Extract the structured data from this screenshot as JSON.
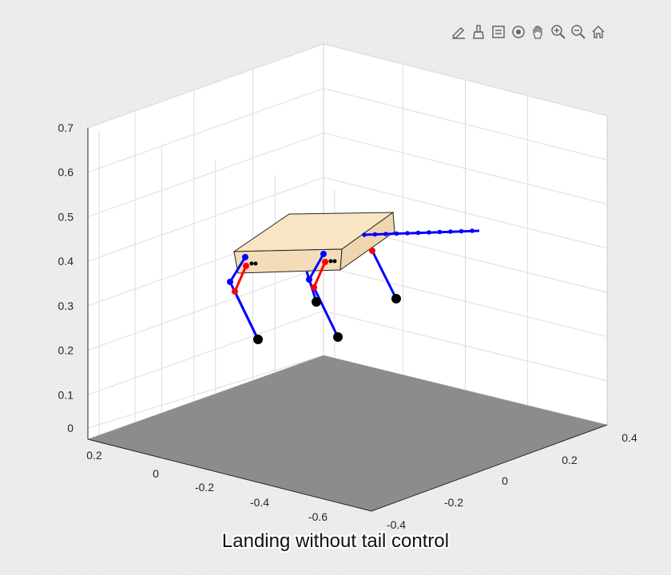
{
  "caption": "Landing without tail control",
  "toolbar": {
    "items": [
      {
        "name": "edit-plot-icon"
      },
      {
        "name": "brush-icon"
      },
      {
        "name": "data-tips-icon"
      },
      {
        "name": "rotate-3d-icon"
      },
      {
        "name": "pan-hand-icon"
      },
      {
        "name": "zoom-in-icon"
      },
      {
        "name": "zoom-out-icon"
      },
      {
        "name": "home-icon"
      }
    ]
  },
  "colors": {
    "axes_bg": "#ffffff",
    "grid": "#dcdce6",
    "ground": "#8c8c8c",
    "body_fill": "#f8e5c4",
    "leg_blue": "#0000ff",
    "leg_red": "#ff0000",
    "foot": "#000000"
  },
  "chart_data": {
    "type": "3d-line",
    "title": "",
    "xlabel": "",
    "ylabel": "",
    "zlabel": "",
    "x_ticks": [
      "0.2",
      "0",
      "-0.2",
      "-0.4",
      "-0.6"
    ],
    "y_ticks": [
      "-0.4",
      "-0.2",
      "0",
      "0.2",
      "0.4"
    ],
    "z_ticks": [
      "0",
      "0.1",
      "0.2",
      "0.3",
      "0.4",
      "0.5",
      "0.6",
      "0.7"
    ],
    "zlim": [
      0,
      0.7
    ],
    "grid": true,
    "ground_plane": "z = 0",
    "objects": [
      "body box",
      "4 legs (blue/red segments)",
      "tail (blue, dotted)",
      "black feet markers"
    ]
  }
}
